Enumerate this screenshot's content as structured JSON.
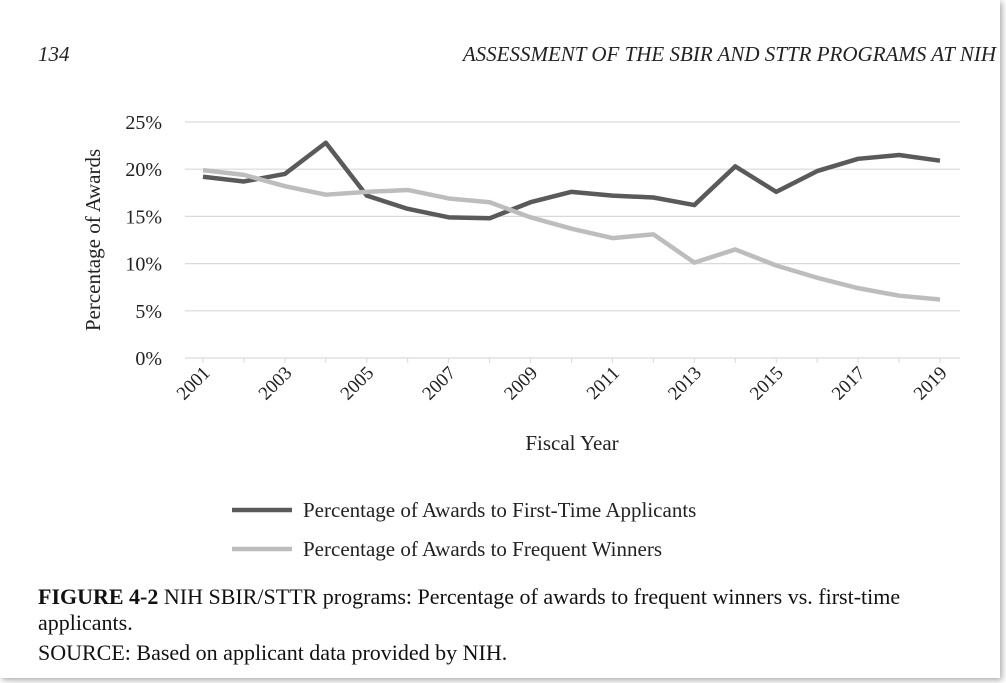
{
  "header": {
    "page_number": "134",
    "running_title": "ASSESSMENT OF THE SBIR AND STTR PROGRAMS AT NIH"
  },
  "chart_data": {
    "type": "line",
    "y_label": "Percentage of Awards",
    "x_label": "Fiscal Year",
    "categories": [
      "2001",
      null,
      "2003",
      null,
      "2005",
      null,
      "2007",
      null,
      "2009",
      null,
      "2011",
      null,
      "2013",
      null,
      "2015",
      null,
      "2017",
      null,
      "2019"
    ],
    "series": [
      {
        "name": "Percentage of Awards to First-Time Applicants",
        "color": "#5a5a5a",
        "values": [
          19.2,
          18.7,
          19.5,
          22.8,
          17.2,
          15.8,
          14.9,
          14.8,
          16.5,
          17.6,
          17.2,
          17.0,
          16.2,
          20.3,
          17.6,
          19.8,
          21.1,
          21.5,
          20.9
        ]
      },
      {
        "name": "Percentage of Awards to Frequent Winners",
        "color": "#bdbdbd",
        "values": [
          19.9,
          19.4,
          18.2,
          17.3,
          17.6,
          17.8,
          16.9,
          16.5,
          14.9,
          13.7,
          12.7,
          13.1,
          10.1,
          11.5,
          9.8,
          8.5,
          7.4,
          6.6,
          6.2
        ]
      }
    ],
    "ylim": [
      0,
      25
    ],
    "yticks": [
      {
        "value": 0,
        "label": "0%"
      },
      {
        "value": 5,
        "label": "5%"
      },
      {
        "value": 10,
        "label": "10%"
      },
      {
        "value": 15,
        "label": "15%"
      },
      {
        "value": 20,
        "label": "20%"
      },
      {
        "value": 25,
        "label": "25%"
      }
    ],
    "grid": true
  },
  "caption": {
    "figure_label": "FIGURE 4-2",
    "figure_text": "NIH SBIR/STTR programs: Percentage of awards to frequent winners vs. first-time applicants.",
    "source": "SOURCE: Based on applicant data provided by NIH."
  }
}
